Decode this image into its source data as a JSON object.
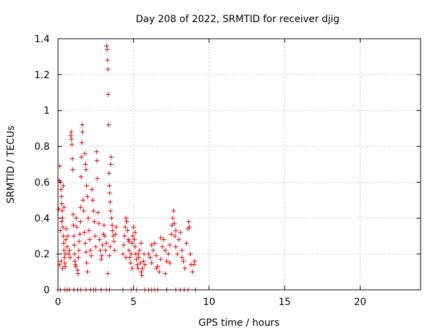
{
  "chart_data": {
    "type": "scatter",
    "title": "Day 208 of 2022, SRMTID for receiver djig",
    "xlabel": "GPS time / hours",
    "ylabel": "SRMTID / TECUs",
    "xlim": [
      0,
      24
    ],
    "ylim": [
      0,
      1.4
    ],
    "xticks": [
      0,
      5,
      10,
      15,
      20
    ],
    "xtick_labels": [
      "0",
      "5",
      "10",
      "15",
      "20"
    ],
    "yticks": [
      0,
      0.2,
      0.4,
      0.6,
      0.8,
      1,
      1.2,
      1.4
    ],
    "ytick_labels": [
      "0",
      "0.2",
      "0.4",
      "0.6",
      "0.8",
      "1",
      "1.2",
      "1.4"
    ],
    "grid": true,
    "marker": "+",
    "color": "#e00000",
    "series": [
      {
        "name": "SRMTID",
        "points": [
          [
            0.0,
            0.2
          ],
          [
            0.05,
            0.45
          ],
          [
            0.1,
            0.61
          ],
          [
            0.12,
            0.69
          ],
          [
            0.15,
            0.6
          ],
          [
            0.2,
            0.56
          ],
          [
            0.22,
            0.52
          ],
          [
            0.25,
            0.48
          ],
          [
            0.28,
            0.44
          ],
          [
            0.3,
            0.4
          ],
          [
            0.32,
            0.35
          ],
          [
            0.35,
            0.3
          ],
          [
            0.38,
            0.26
          ],
          [
            0.4,
            0.22
          ],
          [
            0.42,
            0.18
          ],
          [
            0.45,
            0.15
          ],
          [
            0.48,
            0.13
          ],
          [
            0.5,
            0.2
          ],
          [
            0.52,
            0.28
          ],
          [
            0.55,
            0.34
          ],
          [
            0.1,
            0.14
          ],
          [
            0.2,
            0.16
          ],
          [
            0.3,
            0.12
          ],
          [
            0.15,
            0.33
          ],
          [
            0.25,
            0.38
          ],
          [
            0.35,
            0.58
          ],
          [
            0.4,
            0.46
          ],
          [
            0.6,
            0.24
          ],
          [
            0.65,
            0.3
          ],
          [
            0.7,
            0.2
          ],
          [
            0.75,
            0.22
          ],
          [
            0.8,
            0.18
          ],
          [
            0.85,
            0.86
          ],
          [
            0.88,
            0.88
          ],
          [
            0.9,
            0.84
          ],
          [
            0.92,
            0.81
          ],
          [
            0.95,
            0.73
          ],
          [
            0.98,
            0.67
          ],
          [
            1.0,
            0.42
          ],
          [
            1.02,
            0.36
          ],
          [
            1.05,
            0.3
          ],
          [
            1.08,
            0.25
          ],
          [
            1.1,
            0.2
          ],
          [
            1.12,
            0.16
          ],
          [
            1.15,
            0.14
          ],
          [
            1.18,
            0.13
          ],
          [
            1.2,
            0.4
          ],
          [
            1.25,
            0.35
          ],
          [
            1.3,
            0.11
          ],
          [
            1.32,
            0.09
          ],
          [
            1.35,
            0.18
          ],
          [
            1.38,
            0.22
          ],
          [
            1.4,
            0.27
          ],
          [
            1.45,
            0.31
          ],
          [
            1.48,
            0.38
          ],
          [
            1.5,
            0.46
          ],
          [
            1.52,
            0.63
          ],
          [
            1.55,
            0.74
          ],
          [
            1.58,
            0.82
          ],
          [
            1.6,
            0.92
          ],
          [
            1.62,
            0.88
          ],
          [
            1.65,
            0.5
          ],
          [
            1.7,
            0.44
          ],
          [
            1.75,
            0.32
          ],
          [
            1.8,
            0.26
          ],
          [
            1.85,
            0.21
          ],
          [
            1.9,
            0.15
          ],
          [
            1.95,
            0.1
          ],
          [
            1.78,
            0.76
          ],
          [
            1.82,
            0.7
          ],
          [
            1.86,
            0.67
          ],
          [
            1.9,
            0.58
          ],
          [
            1.95,
            0.52
          ],
          [
            2.0,
            0.4
          ],
          [
            2.05,
            0.33
          ],
          [
            2.1,
            0.28
          ],
          [
            2.15,
            0.22
          ],
          [
            2.2,
            0.19
          ],
          [
            2.25,
            0.56
          ],
          [
            2.3,
            0.5
          ],
          [
            2.35,
            0.44
          ],
          [
            2.4,
            0.38
          ],
          [
            2.45,
            0.3
          ],
          [
            2.5,
            0.24
          ],
          [
            2.55,
            0.77
          ],
          [
            2.58,
            0.72
          ],
          [
            2.6,
            0.62
          ],
          [
            2.65,
            0.43
          ],
          [
            2.7,
            0.37
          ],
          [
            2.75,
            0.28
          ],
          [
            2.8,
            0.22
          ],
          [
            2.85,
            0.17
          ],
          [
            2.9,
            0.19
          ],
          [
            2.95,
            0.25
          ],
          [
            3.0,
            0.31
          ],
          [
            3.05,
            0.36
          ],
          [
            3.1,
            0.3
          ],
          [
            3.15,
            0.22
          ],
          [
            3.2,
            0.26
          ],
          [
            3.22,
            1.36
          ],
          [
            3.25,
            1.34
          ],
          [
            3.28,
            1.28
          ],
          [
            3.3,
            1.23
          ],
          [
            3.32,
            1.09
          ],
          [
            3.35,
            0.92
          ],
          [
            3.38,
            0.65
          ],
          [
            3.4,
            0.58
          ],
          [
            3.42,
            0.54
          ],
          [
            3.45,
            0.49
          ],
          [
            3.48,
            0.44
          ],
          [
            3.5,
            0.7
          ],
          [
            3.52,
            0.74
          ],
          [
            3.55,
            0.4
          ],
          [
            3.58,
            0.36
          ],
          [
            3.6,
            0.33
          ],
          [
            3.65,
            0.3
          ],
          [
            3.7,
            0.27
          ],
          [
            3.75,
            0.22
          ],
          [
            3.8,
            0.31
          ],
          [
            3.85,
            0.35
          ],
          [
            3.3,
            0.09
          ],
          [
            3.4,
            0.19
          ],
          [
            3.45,
            0.24
          ],
          [
            4.3,
            0.2
          ],
          [
            4.35,
            0.25
          ],
          [
            4.4,
            0.3
          ],
          [
            4.45,
            0.35
          ],
          [
            4.5,
            0.4
          ],
          [
            4.55,
            0.38
          ],
          [
            4.6,
            0.33
          ],
          [
            4.65,
            0.28
          ],
          [
            4.7,
            0.22
          ],
          [
            4.75,
            0.18
          ],
          [
            4.8,
            0.15
          ],
          [
            4.85,
            0.2
          ],
          [
            4.9,
            0.26
          ],
          [
            4.95,
            0.3
          ],
          [
            5.0,
            0.35
          ],
          [
            5.05,
            0.28
          ],
          [
            5.1,
            0.24
          ],
          [
            5.15,
            0.2
          ],
          [
            5.2,
            0.17
          ],
          [
            5.25,
            0.14
          ],
          [
            5.3,
            0.12
          ],
          [
            5.35,
            0.18
          ],
          [
            5.4,
            0.22
          ],
          [
            5.45,
            0.15
          ],
          [
            5.5,
            0.1
          ],
          [
            5.55,
            0.08
          ],
          [
            5.6,
            0.12
          ],
          [
            5.65,
            0.16
          ],
          [
            5.7,
            0.2
          ],
          [
            5.75,
            0.14
          ],
          [
            4.5,
            0.18
          ],
          [
            4.7,
            0.27
          ],
          [
            4.9,
            0.12
          ],
          [
            5.1,
            0.32
          ],
          [
            5.3,
            0.2
          ],
          [
            5.5,
            0.26
          ],
          [
            6.0,
            0.2
          ],
          [
            6.1,
            0.18
          ],
          [
            6.2,
            0.15
          ],
          [
            6.3,
            0.22
          ],
          [
            6.4,
            0.26
          ],
          [
            6.5,
            0.19
          ],
          [
            6.6,
            0.13
          ],
          [
            6.7,
            0.1
          ],
          [
            6.8,
            0.17
          ],
          [
            6.9,
            0.24
          ],
          [
            7.0,
            0.28
          ],
          [
            7.1,
            0.22
          ],
          [
            7.2,
            0.16
          ],
          [
            7.3,
            0.2
          ],
          [
            7.4,
            0.25
          ],
          [
            7.5,
            0.31
          ],
          [
            7.55,
            0.36
          ],
          [
            7.6,
            0.4
          ],
          [
            7.65,
            0.44
          ],
          [
            7.7,
            0.37
          ],
          [
            7.75,
            0.3
          ],
          [
            7.8,
            0.24
          ],
          [
            7.9,
            0.2
          ],
          [
            8.0,
            0.28
          ],
          [
            8.1,
            0.32
          ],
          [
            8.2,
            0.22
          ],
          [
            8.3,
            0.16
          ],
          [
            8.4,
            0.12
          ],
          [
            8.5,
            0.26
          ],
          [
            8.6,
            0.34
          ],
          [
            8.65,
            0.38
          ],
          [
            8.7,
            0.35
          ],
          [
            8.75,
            0.2
          ],
          [
            8.8,
            0.14
          ],
          [
            8.9,
            0.1
          ],
          [
            9.0,
            0.14
          ],
          [
            9.05,
            0.16
          ],
          [
            6.2,
            0.25
          ],
          [
            6.5,
            0.12
          ],
          [
            6.8,
            0.29
          ],
          [
            7.1,
            0.09
          ],
          [
            7.4,
            0.15
          ],
          [
            7.8,
            0.33
          ],
          [
            8.2,
            0.18
          ],
          [
            0.0,
            0.0
          ],
          [
            0.15,
            0.0
          ],
          [
            0.45,
            0.0
          ],
          [
            0.6,
            0.0
          ],
          [
            0.75,
            0.0
          ],
          [
            1.05,
            0.0
          ],
          [
            1.3,
            0.0
          ],
          [
            1.5,
            0.0
          ],
          [
            1.85,
            0.0
          ],
          [
            2.15,
            0.0
          ],
          [
            2.35,
            0.0
          ],
          [
            2.5,
            0.0
          ],
          [
            2.85,
            0.0
          ],
          [
            3.2,
            0.0
          ],
          [
            3.4,
            0.0
          ],
          [
            4.3,
            0.0
          ],
          [
            4.85,
            0.0
          ],
          [
            5.2,
            0.0
          ],
          [
            5.75,
            0.0
          ],
          [
            6.0,
            0.0
          ],
          [
            6.2,
            0.0
          ],
          [
            6.4,
            0.0
          ],
          [
            6.6,
            0.0
          ],
          [
            7.2,
            0.0
          ],
          [
            7.8,
            0.0
          ],
          [
            8.1,
            0.0
          ],
          [
            8.35,
            0.0
          ],
          [
            8.6,
            0.0
          ],
          [
            9.1,
            0.0
          ]
        ]
      }
    ]
  }
}
